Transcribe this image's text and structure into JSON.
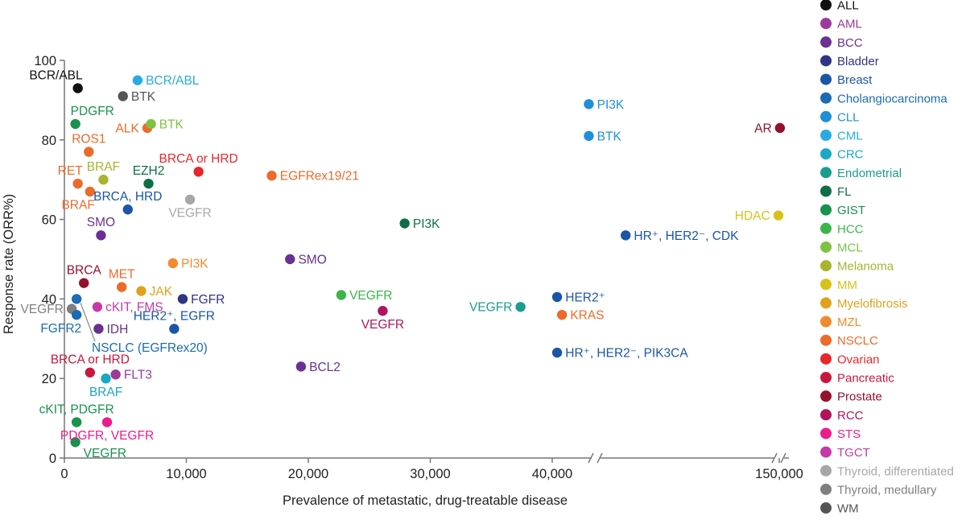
{
  "chart_data": {
    "type": "scatter",
    "title": "",
    "xlabel": "Prevalence of metastatic, drug-treatable disease",
    "ylabel": "Response rate (ORR%)",
    "xlim": [
      0,
      150000
    ],
    "ylim": [
      0,
      100
    ],
    "x_axis_broken": true,
    "x_breaks": [
      "between 40,000 and 150,000"
    ],
    "x_ticks": [
      {
        "value": 0,
        "label": "0"
      },
      {
        "value": 10000,
        "label": "10,000"
      },
      {
        "value": 20000,
        "label": "20,000"
      },
      {
        "value": 30000,
        "label": "30,000"
      },
      {
        "value": 40000,
        "label": "40,000"
      },
      {
        "value": 150000,
        "label": "150,000"
      }
    ],
    "y_ticks": [
      {
        "value": 0,
        "label": "0"
      },
      {
        "value": 20,
        "label": "20"
      },
      {
        "value": 40,
        "label": "40"
      },
      {
        "value": 60,
        "label": "60"
      },
      {
        "value": 80,
        "label": "80"
      },
      {
        "value": 100,
        "label": "100"
      }
    ],
    "grid": false,
    "legend_position": "right",
    "legend": [
      {
        "name": "ALL",
        "color": "#111111"
      },
      {
        "name": "AML",
        "color": "#9b3a9a"
      },
      {
        "name": "BCC",
        "color": "#6a3092"
      },
      {
        "name": "Bladder",
        "color": "#2e3585"
      },
      {
        "name": "Breast",
        "color": "#1b56a6"
      },
      {
        "name": "Cholangiocarcinoma",
        "color": "#1c6bb4"
      },
      {
        "name": "CLL",
        "color": "#1f8fd6"
      },
      {
        "name": "CML",
        "color": "#29abe2"
      },
      {
        "name": "CRC",
        "color": "#1aa8c4"
      },
      {
        "name": "Endometrial",
        "color": "#1a9e8e"
      },
      {
        "name": "FL",
        "color": "#0f6e45"
      },
      {
        "name": "GIST",
        "color": "#18924d"
      },
      {
        "name": "HCC",
        "color": "#3cb44b"
      },
      {
        "name": "MCL",
        "color": "#7ec242"
      },
      {
        "name": "Melanoma",
        "color": "#a8b42e"
      },
      {
        "name": "MM",
        "color": "#d7c21a"
      },
      {
        "name": "Myelofibrosis",
        "color": "#e0a21c"
      },
      {
        "name": "MZL",
        "color": "#f28a2c"
      },
      {
        "name": "NSCLC",
        "color": "#ee6a2a"
      },
      {
        "name": "Ovarian",
        "color": "#e8262b"
      },
      {
        "name": "Pancreatic",
        "color": "#c8183e"
      },
      {
        "name": "Prostate",
        "color": "#94102d"
      },
      {
        "name": "RCC",
        "color": "#b0145c"
      },
      {
        "name": "STS",
        "color": "#ec1c8c"
      },
      {
        "name": "TGCT",
        "color": "#c63aa8"
      },
      {
        "name": "Thyroid, differentiated",
        "color": "#a7a7a7"
      },
      {
        "name": "Thyroid, medullary",
        "color": "#7f7f7f"
      },
      {
        "name": "WM",
        "color": "#555555"
      }
    ],
    "points": [
      {
        "x": 1100,
        "y": 93,
        "label": "BCR/ABL",
        "series": "ALL",
        "label_pos": "tl"
      },
      {
        "x": 6000,
        "y": 95,
        "label": "BCR/ABL",
        "series": "CML",
        "label_pos": "r"
      },
      {
        "x": 4800,
        "y": 91,
        "label": "BTK",
        "series": "WM",
        "label_pos": "r"
      },
      {
        "x": 900,
        "y": 84,
        "label": "PDGFR",
        "series": "GIST",
        "label_pos": "tr"
      },
      {
        "x": 6800,
        "y": 83,
        "label": "ALK",
        "series": "NSCLC",
        "label_pos": "l"
      },
      {
        "x": 7100,
        "y": 84,
        "label": "BTK",
        "series": "MCL",
        "label_pos": "r"
      },
      {
        "x": 2000,
        "y": 77,
        "label": "ROS1",
        "series": "NSCLC",
        "label_pos": "t"
      },
      {
        "x": 11000,
        "y": 72,
        "label": "BRCA or HRD",
        "series": "Ovarian",
        "label_pos": "t"
      },
      {
        "x": 17000,
        "y": 71,
        "label": "EGFRex19/21",
        "series": "NSCLC",
        "label_pos": "r"
      },
      {
        "x": 1100,
        "y": 69,
        "label": "RET",
        "series": "NSCLC",
        "label_pos": "tl"
      },
      {
        "x": 2100,
        "y": 67,
        "label": "BRAF",
        "series": "NSCLC",
        "label_pos": "bl"
      },
      {
        "x": 3200,
        "y": 70,
        "label": "BRAF",
        "series": "Melanoma",
        "label_pos": "t"
      },
      {
        "x": 6900,
        "y": 69,
        "label": "EZH2",
        "series": "FL",
        "label_pos": "t"
      },
      {
        "x": 5200,
        "y": 62.5,
        "label": "BRCA, HRD",
        "series": "Breast",
        "label_pos": "t"
      },
      {
        "x": 10300,
        "y": 65,
        "label": "VEGFR",
        "series": "Thyroid, differentiated",
        "label_pos": "b"
      },
      {
        "x": 3000,
        "y": 56,
        "label": "SMO",
        "series": "BCC",
        "label_pos": "t"
      },
      {
        "x": 27900,
        "y": 59,
        "label": "PI3K",
        "series": "FL",
        "label_pos": "r"
      },
      {
        "x": 8900,
        "y": 49,
        "label": "PI3K",
        "series": "MZL",
        "label_pos": "r"
      },
      {
        "x": 18500,
        "y": 50,
        "label": "SMO",
        "series": "BCC",
        "label_pos": "r"
      },
      {
        "x": 1600,
        "y": 44,
        "label": "BRCA",
        "series": "Prostate",
        "label_pos": "t"
      },
      {
        "x": 4700,
        "y": 43,
        "label": "MET",
        "series": "NSCLC",
        "label_pos": "t"
      },
      {
        "x": 6300,
        "y": 42,
        "label": "JAK",
        "series": "Myelofibrosis",
        "label_pos": "r"
      },
      {
        "x": 9700,
        "y": 40,
        "label": "FGFR",
        "series": "Bladder",
        "label_pos": "r"
      },
      {
        "x": 2700,
        "y": 38,
        "label": "cKIT, FMS",
        "series": "TGCT",
        "label_pos": "r"
      },
      {
        "x": 1000,
        "y": 40,
        "label": "NSCLC (EGFRex20)",
        "series": "Cholangiocarcinoma",
        "label_pos": "leader"
      },
      {
        "x": 600,
        "y": 37.5,
        "label": "VEGFR",
        "series": "Thyroid, medullary",
        "label_pos": "l"
      },
      {
        "x": 1000,
        "y": 36,
        "label": "FGFR2",
        "series": "Cholangiocarcinoma",
        "label_pos": "bl"
      },
      {
        "x": 2800,
        "y": 32.5,
        "label": "IDH",
        "series": "BCC",
        "label_pos": "r"
      },
      {
        "x": 9000,
        "y": 32.5,
        "label": "HER2⁺, EGFR",
        "series": "Breast",
        "label_pos": "t"
      },
      {
        "x": 22700,
        "y": 41,
        "label": "VEGFR",
        "series": "HCC",
        "label_pos": "r"
      },
      {
        "x": 26100,
        "y": 37,
        "label": "VEGFR",
        "series": "RCC",
        "label_pos": "b"
      },
      {
        "x": 19400,
        "y": 23,
        "label": "BCL2",
        "series": "BCC",
        "label_pos": "r"
      },
      {
        "x": 2100,
        "y": 21.5,
        "label": "BRCA or HRD",
        "series": "Pancreatic",
        "label_pos": "t"
      },
      {
        "x": 4200,
        "y": 21,
        "label": "FLT3",
        "series": "AML",
        "label_pos": "r"
      },
      {
        "x": 3400,
        "y": 20,
        "label": "BRAF",
        "series": "CRC",
        "label_pos": "b"
      },
      {
        "x": 1000,
        "y": 9,
        "label": "cKIT, PDGFR",
        "series": "GIST",
        "label_pos": "t"
      },
      {
        "x": 3500,
        "y": 9,
        "label": "PDGFR, VEGFR",
        "series": "STS",
        "label_pos": "b"
      },
      {
        "x": 900,
        "y": 4,
        "label": "VEGFR",
        "series": "GIST",
        "label_pos": "br"
      },
      {
        "x": 37400,
        "y": 38,
        "label": "VEGFR",
        "series": "Endometrial",
        "label_pos": "l"
      },
      {
        "x": 40400,
        "y": 40.5,
        "label": "HER2⁺",
        "series": "Breast",
        "label_pos": "r"
      },
      {
        "x": 40800,
        "y": 36,
        "label": "KRAS",
        "series": "NSCLC",
        "label_pos": "r"
      },
      {
        "x": 40400,
        "y": 26.5,
        "label": "HR⁺, HER2⁻, PIK3CA",
        "series": "Breast",
        "label_pos": "r"
      },
      {
        "x": 43000,
        "y": 89,
        "label": "PI3K",
        "series": "CLL",
        "label_pos": "r"
      },
      {
        "x": 43000,
        "y": 81,
        "label": "BTK",
        "series": "CLL",
        "label_pos": "r"
      },
      {
        "x": 44000,
        "y": 56,
        "label": "HR⁺, HER2⁻, CDK",
        "series": "Breast",
        "label_pos": "r"
      },
      {
        "x": 149400,
        "y": 61,
        "label": "HDAC",
        "series": "MM",
        "label_pos": "l"
      },
      {
        "x": 150500,
        "y": 83,
        "label": "AR",
        "series": "Prostate",
        "label_pos": "l"
      }
    ]
  }
}
